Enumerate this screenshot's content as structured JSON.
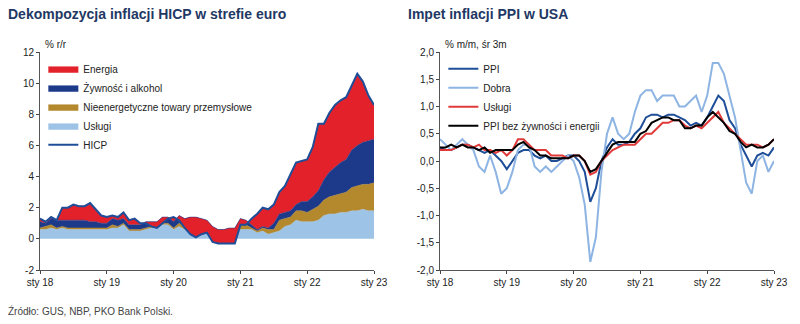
{
  "source": "Źródło: GUS, NBP, PKO Bank Polski.",
  "chart_data": [
    {
      "type": "area",
      "title": "Dekompozycja inflacji HICP w strefie euro",
      "y_label": "% r/r",
      "stacked": true,
      "legend": "top-left",
      "grid": false,
      "categories": [
        "sty 18",
        null,
        null,
        null,
        null,
        null,
        null,
        null,
        null,
        null,
        null,
        null,
        "sty 19",
        null,
        null,
        null,
        null,
        null,
        null,
        null,
        null,
        null,
        null,
        null,
        "sty 20",
        null,
        null,
        null,
        null,
        null,
        null,
        null,
        null,
        null,
        null,
        null,
        "sty 21",
        null,
        null,
        null,
        null,
        null,
        null,
        null,
        null,
        null,
        null,
        null,
        "sty 22",
        null,
        null,
        null,
        null,
        null,
        null,
        null,
        null,
        null,
        null,
        null,
        "sty 23"
      ],
      "ylim": [
        -2,
        12
      ],
      "yticks": [
        -2,
        0,
        2,
        4,
        6,
        8,
        10,
        12
      ],
      "series": [
        {
          "name": "Energia",
          "color": "#e3212b",
          "values": [
            0.2,
            0.1,
            0.1,
            0.0,
            0.8,
            0.8,
            1.0,
            0.9,
            0.9,
            1.2,
            0.8,
            0.5,
            0.4,
            0.2,
            0.2,
            0.4,
            0.3,
            0.4,
            0.1,
            -0.1,
            -0.3,
            -0.4,
            -0.4,
            -0.1,
            0.3,
            -0.3,
            -0.6,
            -1.1,
            -1.3,
            -1.0,
            -0.8,
            -1.0,
            -0.9,
            -0.9,
            -1.0,
            -1.0,
            -0.4,
            -0.3,
            0.4,
            1.0,
            1.2,
            1.2,
            1.2,
            1.4,
            1.7,
            2.3,
            2.7,
            2.6,
            2.7,
            3.2,
            4.3,
            3.6,
            3.8,
            4.0,
            4.0,
            4.0,
            4.2,
            4.6,
            3.9,
            2.9,
            2.2
          ]
        },
        {
          "name": "Żywność i alkohol",
          "color": "#1d3a8a",
          "values": [
            0.4,
            0.2,
            0.4,
            0.5,
            0.4,
            0.5,
            0.5,
            0.5,
            0.5,
            0.4,
            0.4,
            0.3,
            0.3,
            0.4,
            0.4,
            0.3,
            0.3,
            0.3,
            0.3,
            0.4,
            0.3,
            0.3,
            0.4,
            0.4,
            0.4,
            0.5,
            0.5,
            0.7,
            0.7,
            0.7,
            0.4,
            0.4,
            0.4,
            0.4,
            0.4,
            0.4,
            0.3,
            0.3,
            0.2,
            0.1,
            0.1,
            0.1,
            0.4,
            0.4,
            0.4,
            0.4,
            0.4,
            0.6,
            0.7,
            0.8,
            1.0,
            1.3,
            1.6,
            1.8,
            2.0,
            2.1,
            2.4,
            2.6,
            2.7,
            2.8,
            2.8
          ]
        },
        {
          "name": "Nieenergetyczne towary przemysłowe",
          "color": "#b4882c",
          "values": [
            0.1,
            0.2,
            0.2,
            0.1,
            0.1,
            0.1,
            0.1,
            0.1,
            0.1,
            0.1,
            0.1,
            0.1,
            0.1,
            0.2,
            0.1,
            0.1,
            0.1,
            0.1,
            0.1,
            0.1,
            0.1,
            0.1,
            0.1,
            0.1,
            0.1,
            0.2,
            0.2,
            0.1,
            0.1,
            0.1,
            0.4,
            0.1,
            0.0,
            0.0,
            0.0,
            0.0,
            0.4,
            0.3,
            0.1,
            0.1,
            0.2,
            0.3,
            0.2,
            0.7,
            0.5,
            0.5,
            0.6,
            0.7,
            0.6,
            0.8,
            0.9,
            1.0,
            1.1,
            1.2,
            1.2,
            1.3,
            1.5,
            1.6,
            1.6,
            1.7,
            1.8
          ]
        },
        {
          "name": "Usługi",
          "color": "#9dc3e6",
          "values": [
            0.6,
            0.6,
            0.7,
            0.6,
            0.7,
            0.6,
            0.6,
            0.6,
            0.6,
            0.6,
            0.6,
            0.6,
            0.6,
            0.7,
            0.7,
            0.9,
            0.5,
            0.5,
            0.5,
            0.6,
            0.7,
            0.7,
            0.9,
            0.9,
            0.6,
            0.8,
            0.6,
            0.6,
            0.6,
            0.5,
            0.4,
            0.3,
            0.2,
            0.2,
            0.3,
            0.3,
            0.6,
            0.6,
            0.6,
            0.4,
            0.5,
            0.3,
            0.4,
            0.5,
            0.8,
            0.9,
            1.2,
            1.1,
            1.1,
            1.1,
            1.2,
            1.5,
            1.6,
            1.6,
            1.7,
            1.7,
            1.8,
            1.8,
            1.9,
            1.8,
            1.8
          ]
        },
        {
          "name": "HICP",
          "type": "line",
          "color": "#1f4e99",
          "values": [
            1.3,
            1.1,
            1.4,
            1.2,
            2.0,
            2.0,
            2.2,
            2.1,
            2.1,
            2.3,
            1.9,
            1.5,
            1.4,
            1.5,
            1.4,
            1.7,
            1.2,
            1.3,
            1.0,
            1.0,
            0.8,
            0.7,
            1.0,
            1.3,
            1.4,
            1.2,
            0.7,
            0.3,
            0.1,
            0.3,
            0.4,
            -0.2,
            -0.3,
            -0.3,
            -0.3,
            -0.3,
            0.9,
            0.9,
            1.3,
            1.6,
            2.0,
            1.9,
            2.2,
            3.0,
            3.4,
            4.1,
            4.9,
            5.0,
            5.1,
            5.9,
            7.4,
            7.4,
            8.1,
            8.6,
            8.9,
            9.1,
            9.9,
            10.6,
            10.1,
            9.2,
            8.6
          ]
        }
      ]
    },
    {
      "type": "line",
      "title": "Impet inflacji PPI w USA",
      "y_label": "% m/m, śr 3m",
      "legend": "top-left",
      "grid": false,
      "categories": [
        "sty 18",
        null,
        null,
        null,
        null,
        null,
        null,
        null,
        null,
        null,
        null,
        null,
        "sty 19",
        null,
        null,
        null,
        null,
        null,
        null,
        null,
        null,
        null,
        null,
        null,
        "sty 20",
        null,
        null,
        null,
        null,
        null,
        null,
        null,
        null,
        null,
        null,
        null,
        "sty 21",
        null,
        null,
        null,
        null,
        null,
        null,
        null,
        null,
        null,
        null,
        null,
        "sty 22",
        null,
        null,
        null,
        null,
        null,
        null,
        null,
        null,
        null,
        null,
        null,
        "sty 23"
      ],
      "ylim": [
        -2,
        2
      ],
      "yticks": [
        {
          "value": -2,
          "label": "-2,0"
        },
        {
          "value": -1.5,
          "label": "-1,5"
        },
        {
          "value": -1,
          "label": "-1,0"
        },
        {
          "value": -0.5,
          "label": "-0,5"
        },
        {
          "value": 0,
          "label": "0,0"
        },
        {
          "value": 0.5,
          "label": "0,5"
        },
        {
          "value": 1,
          "label": "1,0"
        },
        {
          "value": 1.5,
          "label": "1,5"
        },
        {
          "value": 2,
          "label": "2,0"
        }
      ],
      "series": [
        {
          "name": "PPI",
          "color": "#1f4e99",
          "values": [
            0.25,
            0.2,
            0.2,
            0.25,
            0.3,
            0.3,
            0.25,
            0.2,
            0.15,
            0.2,
            0.1,
            0.0,
            -0.15,
            0.0,
            0.15,
            0.2,
            0.2,
            0.1,
            0.05,
            0.1,
            0.0,
            0.0,
            0.05,
            0.1,
            0.1,
            0.0,
            -0.2,
            -0.75,
            -0.5,
            0.0,
            0.25,
            0.4,
            0.3,
            0.3,
            0.35,
            0.5,
            0.6,
            0.8,
            0.85,
            0.85,
            0.8,
            0.85,
            0.85,
            0.8,
            0.75,
            0.65,
            0.7,
            0.65,
            0.8,
            1.0,
            1.2,
            1.1,
            0.75,
            0.6,
            0.3,
            0.1,
            -0.1,
            0.1,
            0.15,
            0.1,
            0.25
          ]
        },
        {
          "name": "Dobra",
          "color": "#8db4e2",
          "values": [
            0.4,
            0.3,
            0.2,
            0.3,
            0.4,
            0.3,
            0.2,
            -0.1,
            -0.2,
            0.1,
            -0.2,
            -0.6,
            -0.5,
            -0.2,
            0.2,
            0.3,
            0.3,
            -0.1,
            -0.2,
            -0.1,
            -0.2,
            -0.1,
            0.0,
            0.1,
            0.0,
            -0.3,
            -0.8,
            -1.85,
            -1.4,
            -0.2,
            0.5,
            0.8,
            0.5,
            0.4,
            0.5,
            0.9,
            1.2,
            1.3,
            1.3,
            1.1,
            1.2,
            1.2,
            1.2,
            1.0,
            1.0,
            1.1,
            1.2,
            0.9,
            1.2,
            1.8,
            1.8,
            1.6,
            1.2,
            0.8,
            0.2,
            -0.4,
            -0.6,
            0.0,
            0.1,
            -0.2,
            0.0
          ]
        },
        {
          "name": "Usługi",
          "color": "#e03a3a",
          "values": [
            0.2,
            0.2,
            0.2,
            0.25,
            0.3,
            0.3,
            0.25,
            0.3,
            0.2,
            0.2,
            0.15,
            0.2,
            0.1,
            0.2,
            0.4,
            0.4,
            0.3,
            0.2,
            0.2,
            0.2,
            0.1,
            0.1,
            0.1,
            0.05,
            0.1,
            0.1,
            0.0,
            -0.25,
            -0.2,
            0.0,
            0.1,
            0.2,
            0.25,
            0.3,
            0.3,
            0.3,
            0.4,
            0.5,
            0.5,
            0.6,
            0.7,
            0.7,
            0.75,
            0.75,
            0.65,
            0.6,
            0.65,
            0.6,
            0.7,
            0.8,
            0.9,
            0.7,
            0.6,
            0.5,
            0.4,
            0.3,
            0.3,
            0.3,
            0.25,
            0.3,
            0.4
          ]
        },
        {
          "name": "PPI bez żywności i energii",
          "color": "#000000",
          "values": [
            0.25,
            0.25,
            0.3,
            0.25,
            0.3,
            0.25,
            0.25,
            0.2,
            0.25,
            0.15,
            0.2,
            0.2,
            0.2,
            0.2,
            0.3,
            0.35,
            0.25,
            0.2,
            0.1,
            0.1,
            0.05,
            0.05,
            0.05,
            0.05,
            0.1,
            0.1,
            0.0,
            -0.2,
            -0.15,
            0.0,
            0.15,
            0.3,
            0.35,
            0.35,
            0.35,
            0.35,
            0.5,
            0.55,
            0.7,
            0.75,
            0.8,
            0.8,
            0.75,
            0.75,
            0.6,
            0.6,
            0.65,
            0.65,
            0.8,
            0.9,
            0.8,
            0.7,
            0.55,
            0.5,
            0.35,
            0.25,
            0.3,
            0.25,
            0.25,
            0.3,
            0.4
          ]
        }
      ]
    }
  ]
}
